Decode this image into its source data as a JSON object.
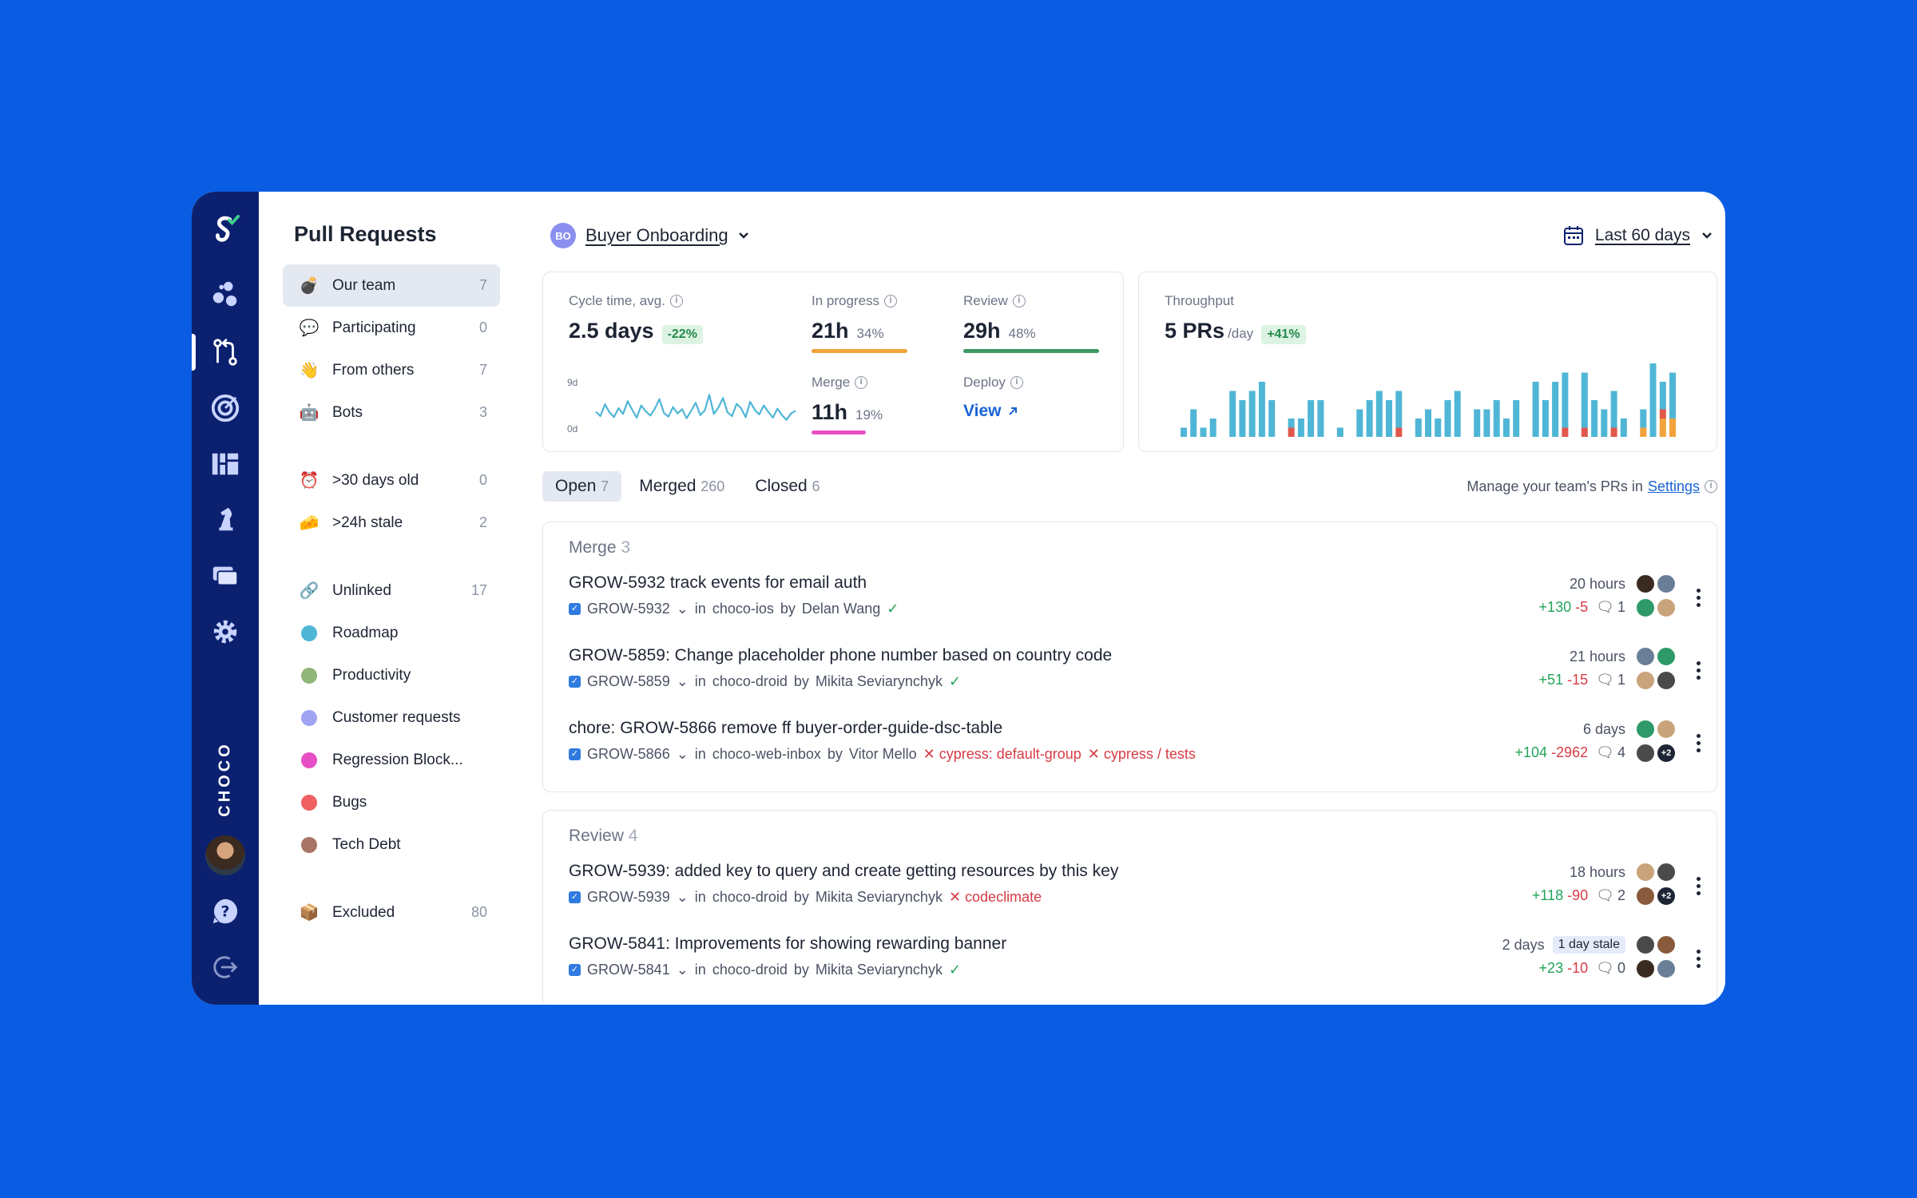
{
  "sidebar": {
    "title": "Pull Requests",
    "items": [
      {
        "icon": "bomb-icon",
        "emoji": "💣",
        "label": "Our team",
        "count": "7",
        "active": true
      },
      {
        "icon": "speech-bubble-icon",
        "emoji": "💬",
        "label": "Participating",
        "count": "0"
      },
      {
        "icon": "waving-hand-icon",
        "emoji": "👋",
        "label": "From others",
        "count": "7"
      },
      {
        "icon": "robot-icon",
        "emoji": "🤖",
        "label": "Bots",
        "count": "3"
      }
    ],
    "age_items": [
      {
        "icon": "alarm-clock-icon",
        "emoji": "⏰",
        "label": ">30 days old",
        "count": "0"
      },
      {
        "icon": "cheese-icon",
        "emoji": "🧀",
        "label": ">24h stale",
        "count": "2"
      }
    ],
    "label_items": [
      {
        "icon": "link-icon",
        "emoji": "🔗",
        "label": "Unlinked",
        "count": "17"
      },
      {
        "label": "Roadmap",
        "color": "#4fb6d6"
      },
      {
        "label": "Productivity",
        "color": "#8fb57a"
      },
      {
        "label": "Customer requests",
        "color": "#9fa3f2"
      },
      {
        "label": "Regression Block...",
        "color": "#e84fc4"
      },
      {
        "label": "Bugs",
        "color": "#f06063"
      },
      {
        "label": "Tech Debt",
        "color": "#a87466"
      }
    ],
    "excluded": {
      "icon": "package-icon",
      "emoji": "📦",
      "label": "Excluded",
      "count": "80"
    }
  },
  "rail": {
    "brand": "CHOCO"
  },
  "header": {
    "team_initials": "BO",
    "team_name": "Buyer Onboarding",
    "range": "Last 60 days"
  },
  "metrics": {
    "cycle": {
      "label": "Cycle time, avg.",
      "value": "2.5 days",
      "delta": "-22%",
      "y_top": "9d",
      "y_bottom": "0d"
    },
    "in_progress": {
      "label": "In progress",
      "value": "21h",
      "pct": "34%",
      "color": "#f2a33c"
    },
    "review": {
      "label": "Review",
      "value": "29h",
      "pct": "48%",
      "color": "#3d9a62"
    },
    "merge": {
      "label": "Merge",
      "value": "11h",
      "pct": "19%",
      "color": "#e84fc4"
    },
    "deploy": {
      "label": "Deploy",
      "link": "View"
    }
  },
  "throughput": {
    "label": "Throughput",
    "value": "5 PRs",
    "unit": "/day",
    "delta": "+41%"
  },
  "tabs": [
    {
      "label": "Open",
      "count": "7",
      "active": true
    },
    {
      "label": "Merged",
      "count": "260"
    },
    {
      "label": "Closed",
      "count": "6"
    }
  ],
  "manage": {
    "text": "Manage your team's PRs in",
    "link": "Settings"
  },
  "groups": [
    {
      "title": "Merge",
      "count": "3",
      "prs": [
        {
          "title": "GROW-5932 track events for email auth",
          "ticket": "GROW-5932",
          "repo": "choco-ios",
          "author": "Delan Wang",
          "checks": [],
          "ok": true,
          "age": "20 hours",
          "add": "+130",
          "del": "-5",
          "comments": "1"
        },
        {
          "title": "GROW-5859: Change placeholder phone number based on country code",
          "ticket": "GROW-5859",
          "repo": "choco-droid",
          "author": "Mikita Seviarynchyk",
          "checks": [],
          "ok": true,
          "age": "21 hours",
          "add": "+51",
          "del": "-15",
          "comments": "1"
        },
        {
          "title": "chore: GROW-5866 remove ff buyer-order-guide-dsc-table",
          "ticket": "GROW-5866",
          "repo": "choco-web-inbox",
          "author": "Vitor Mello",
          "checks": [
            "cypress: default-group",
            "cypress / tests"
          ],
          "ok": false,
          "age": "6 days",
          "add": "+104",
          "del": "-2962",
          "comments": "4",
          "more": "+2"
        }
      ]
    },
    {
      "title": "Review",
      "count": "4",
      "prs": [
        {
          "title": "GROW-5939: added key to query and create getting resources by this key",
          "ticket": "GROW-5939",
          "repo": "choco-droid",
          "author": "Mikita Seviarynchyk",
          "checks": [
            "codeclimate"
          ],
          "ok": false,
          "age": "18 hours",
          "add": "+118",
          "del": "-90",
          "comments": "2",
          "more": "+2"
        },
        {
          "title": "GROW-5841: Improvements for showing rewarding banner",
          "ticket": "GROW-5841",
          "repo": "choco-droid",
          "author": "Mikita Seviarynchyk",
          "checks": [],
          "ok": true,
          "age": "2 days",
          "stale": "1 day stale",
          "add": "+23",
          "del": "-10",
          "comments": "0"
        }
      ]
    }
  ],
  "labels": {
    "in": "in",
    "by": "by"
  },
  "colors": {
    "background": "#0a5de3",
    "rail": "#0b2170",
    "accent": "#1a64d6",
    "line": "#4fb6d6"
  },
  "chart_data": [
    {
      "type": "line",
      "y_tick_labels": [
        "9d",
        "0d"
      ],
      "values": [
        3.2,
        2.4,
        4.6,
        3.1,
        2.2,
        3.9,
        2.8,
        5.2,
        3.6,
        2.1,
        4.4,
        3.3,
        2.5,
        3.8,
        5.6,
        3.0,
        2.3,
        4.1,
        2.9,
        3.7,
        2.0,
        3.4,
        4.9,
        2.6,
        3.5,
        6.4,
        2.8,
        4.0,
        5.8,
        3.1,
        2.4,
        4.7,
        3.9,
        2.2,
        5.1,
        3.6,
        2.7,
        4.4,
        3.2,
        2.1,
        3.8,
        2.6,
        1.7,
        2.9,
        3.4
      ]
    },
    {
      "type": "bar",
      "series": [
        {
          "color": "#4fb6d6",
          "values": [
            1,
            3,
            1,
            2,
            0,
            5,
            4,
            5,
            6,
            4,
            0,
            1,
            2,
            4,
            4,
            0,
            1,
            0,
            3,
            4,
            5,
            4,
            4,
            0,
            2,
            3,
            2,
            4,
            5,
            0,
            3,
            3,
            4,
            2,
            4,
            0,
            6,
            4,
            6,
            6,
            0,
            6,
            4,
            3,
            4,
            2,
            0,
            2,
            8,
            3,
            5
          ]
        },
        {
          "color": "#e2584c",
          "values": [
            0,
            0,
            0,
            0,
            0,
            0,
            0,
            0,
            0,
            0,
            0,
            1,
            0,
            0,
            0,
            0,
            0,
            0,
            0,
            0,
            0,
            0,
            1,
            0,
            0,
            0,
            0,
            0,
            0,
            0,
            0,
            0,
            0,
            0,
            0,
            0,
            0,
            0,
            0,
            1,
            0,
            1,
            0,
            0,
            1,
            0,
            0,
            0,
            0,
            1,
            0
          ]
        },
        {
          "color": "#f2a33c",
          "values": [
            0,
            0,
            0,
            0,
            0,
            0,
            0,
            0,
            0,
            0,
            0,
            0,
            0,
            0,
            0,
            0,
            0,
            0,
            0,
            0,
            0,
            0,
            0,
            0,
            0,
            0,
            0,
            0,
            0,
            0,
            0,
            0,
            0,
            0,
            0,
            0,
            0,
            0,
            0,
            0,
            0,
            0,
            0,
            0,
            0,
            0,
            0,
            1,
            0,
            2,
            2
          ]
        }
      ]
    }
  ]
}
